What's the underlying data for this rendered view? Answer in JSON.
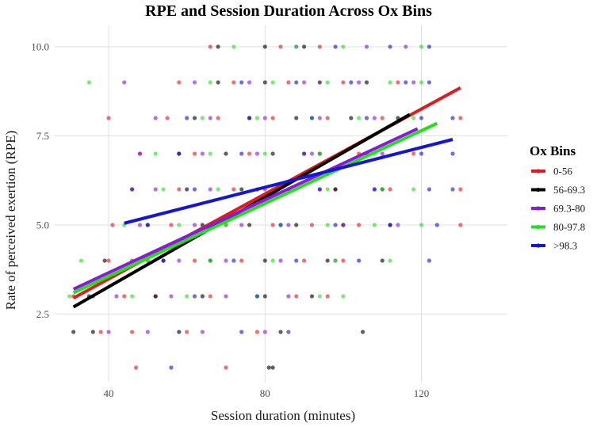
{
  "chart_data": {
    "type": "scatter",
    "title": "RPE and Session Duration Across Ox Bins",
    "xlabel": "Session duration (minutes)",
    "ylabel": "Rate of perceived exertion (RPE)",
    "xlim": [
      26,
      142
    ],
    "ylim": [
      0.6,
      10.6
    ],
    "x_ticks": [
      40,
      80,
      120
    ],
    "y_ticks": [
      2.5,
      5.0,
      7.5,
      10.0
    ],
    "x_tick_labels": [
      "40",
      "80",
      "120"
    ],
    "y_tick_labels": [
      "2.5",
      "5.0",
      "7.5",
      "10.0"
    ],
    "grid": true,
    "legend": {
      "title": "Ox Bins",
      "position": "right",
      "entries": [
        "0-56",
        "56-69.3",
        "69.3-80",
        "80-97.8",
        ">98.3"
      ]
    },
    "colors": {
      "0-56": "#e31a1c",
      "56-69.3": "#000000",
      "69.3-80": "#8a1ad6",
      "80-97.8": "#22e01e",
      ">98.3": "#1515d8"
    },
    "trend_lines": [
      {
        "name": "0-56",
        "x": [
          31,
          130
        ],
        "y": [
          2.95,
          8.85
        ]
      },
      {
        "name": "56-69.3",
        "x": [
          31,
          117
        ],
        "y": [
          2.7,
          8.1
        ]
      },
      {
        "name": "69.3-80",
        "x": [
          31,
          119
        ],
        "y": [
          3.2,
          7.7
        ]
      },
      {
        "name": "80-97.8",
        "x": [
          31,
          124
        ],
        "y": [
          3.1,
          7.85
        ]
      },
      {
        "name": ">98.3",
        "x": [
          44,
          128
        ],
        "y": [
          5.05,
          7.4
        ]
      }
    ],
    "series": [
      {
        "name": "0-56",
        "points": [
          [
            47,
            1
          ],
          [
            70,
            1
          ],
          [
            38,
            2
          ],
          [
            46,
            2
          ],
          [
            60,
            2
          ],
          [
            78,
            2
          ],
          [
            31,
            3
          ],
          [
            44,
            3
          ],
          [
            52,
            3
          ],
          [
            66,
            3
          ],
          [
            88,
            3
          ],
          [
            96,
            3
          ],
          [
            40,
            4
          ],
          [
            50,
            4
          ],
          [
            62,
            4
          ],
          [
            74,
            4
          ],
          [
            90,
            4
          ],
          [
            100,
            4
          ],
          [
            41,
            5
          ],
          [
            56,
            5
          ],
          [
            70,
            5
          ],
          [
            82,
            5
          ],
          [
            92,
            5
          ],
          [
            104,
            5
          ],
          [
            130,
            5
          ],
          [
            46,
            6
          ],
          [
            58,
            6
          ],
          [
            72,
            6
          ],
          [
            86,
            6
          ],
          [
            98,
            6
          ],
          [
            112,
            6
          ],
          [
            130,
            6
          ],
          [
            48,
            7
          ],
          [
            62,
            7
          ],
          [
            76,
            7
          ],
          [
            90,
            7
          ],
          [
            104,
            7
          ],
          [
            118,
            7
          ],
          [
            40,
            8
          ],
          [
            55,
            8
          ],
          [
            68,
            8
          ],
          [
            82,
            8
          ],
          [
            96,
            8
          ],
          [
            110,
            8
          ],
          [
            130,
            8
          ],
          [
            58,
            9
          ],
          [
            72,
            9
          ],
          [
            86,
            9
          ],
          [
            100,
            9
          ],
          [
            114,
            9
          ],
          [
            66,
            10
          ],
          [
            84,
            10
          ],
          [
            94,
            10
          ]
        ]
      },
      {
        "name": "56-69.3",
        "points": [
          [
            82,
            1
          ],
          [
            81,
            1
          ],
          [
            31,
            2
          ],
          [
            36,
            2
          ],
          [
            58,
            2
          ],
          [
            84,
            2
          ],
          [
            105,
            2
          ],
          [
            35,
            3
          ],
          [
            52,
            3
          ],
          [
            64,
            3
          ],
          [
            80,
            3
          ],
          [
            92,
            3
          ],
          [
            39,
            4
          ],
          [
            54,
            4
          ],
          [
            66,
            4
          ],
          [
            80,
            4
          ],
          [
            96,
            4
          ],
          [
            110,
            4
          ],
          [
            50,
            5
          ],
          [
            64,
            5
          ],
          [
            76,
            5
          ],
          [
            88,
            5
          ],
          [
            100,
            5
          ],
          [
            112,
            5
          ],
          [
            60,
            6
          ],
          [
            74,
            6
          ],
          [
            86,
            6
          ],
          [
            98,
            6
          ],
          [
            110,
            6
          ],
          [
            58,
            7
          ],
          [
            70,
            7
          ],
          [
            82,
            7
          ],
          [
            94,
            7
          ],
          [
            106,
            7
          ],
          [
            62,
            8
          ],
          [
            76,
            8
          ],
          [
            88,
            8
          ],
          [
            102,
            8
          ],
          [
            114,
            8
          ],
          [
            68,
            9
          ],
          [
            80,
            9
          ],
          [
            94,
            9
          ],
          [
            106,
            9
          ],
          [
            68,
            10
          ],
          [
            80,
            10
          ],
          [
            90,
            10
          ]
        ]
      },
      {
        "name": "69.3-80",
        "points": [
          [
            40,
            2
          ],
          [
            50,
            2
          ],
          [
            64,
            2
          ],
          [
            80,
            2
          ],
          [
            42,
            3
          ],
          [
            56,
            3
          ],
          [
            70,
            3
          ],
          [
            86,
            3
          ],
          [
            46,
            4
          ],
          [
            58,
            4
          ],
          [
            70,
            4
          ],
          [
            84,
            4
          ],
          [
            98,
            4
          ],
          [
            48,
            5
          ],
          [
            62,
            5
          ],
          [
            74,
            5
          ],
          [
            86,
            5
          ],
          [
            100,
            5
          ],
          [
            114,
            5
          ],
          [
            52,
            6
          ],
          [
            66,
            6
          ],
          [
            80,
            6
          ],
          [
            94,
            6
          ],
          [
            108,
            6
          ],
          [
            48,
            7
          ],
          [
            64,
            7
          ],
          [
            78,
            7
          ],
          [
            92,
            7
          ],
          [
            110,
            7
          ],
          [
            52,
            8
          ],
          [
            66,
            8
          ],
          [
            80,
            8
          ],
          [
            94,
            8
          ],
          [
            108,
            8
          ],
          [
            44,
            9
          ],
          [
            62,
            9
          ],
          [
            76,
            9
          ],
          [
            90,
            9
          ],
          [
            104,
            9
          ],
          [
            118,
            9
          ],
          [
            88,
            10
          ],
          [
            106,
            10
          ],
          [
            116,
            10
          ]
        ]
      },
      {
        "name": "80-97.8",
        "points": [
          [
            30,
            3
          ],
          [
            46,
            3
          ],
          [
            60,
            3
          ],
          [
            78,
            3
          ],
          [
            94,
            3
          ],
          [
            100,
            3
          ],
          [
            33,
            4
          ],
          [
            50,
            4
          ],
          [
            66,
            4
          ],
          [
            82,
            4
          ],
          [
            98,
            4
          ],
          [
            112,
            4
          ],
          [
            44,
            5
          ],
          [
            58,
            5
          ],
          [
            70,
            5
          ],
          [
            84,
            5
          ],
          [
            96,
            5
          ],
          [
            108,
            5
          ],
          [
            120,
            5
          ],
          [
            54,
            6
          ],
          [
            68,
            6
          ],
          [
            82,
            6
          ],
          [
            96,
            6
          ],
          [
            110,
            6
          ],
          [
            118,
            6
          ],
          [
            52,
            7
          ],
          [
            66,
            7
          ],
          [
            80,
            7
          ],
          [
            94,
            7
          ],
          [
            108,
            7
          ],
          [
            64,
            8
          ],
          [
            78,
            8
          ],
          [
            92,
            8
          ],
          [
            104,
            8
          ],
          [
            118,
            8
          ],
          [
            35,
            9
          ],
          [
            66,
            9
          ],
          [
            82,
            9
          ],
          [
            96,
            9
          ],
          [
            112,
            9
          ],
          [
            120,
            9
          ],
          [
            72,
            10
          ],
          [
            88,
            10
          ],
          [
            100,
            10
          ],
          [
            120,
            10
          ]
        ]
      },
      {
        "name": ">98.3",
        "points": [
          [
            56,
            1
          ],
          [
            74,
            2
          ],
          [
            86,
            2
          ],
          [
            36,
            3
          ],
          [
            62,
            3
          ],
          [
            78,
            3
          ],
          [
            54,
            4
          ],
          [
            72,
            4
          ],
          [
            88,
            4
          ],
          [
            104,
            4
          ],
          [
            122,
            4
          ],
          [
            50,
            5
          ],
          [
            68,
            5
          ],
          [
            84,
            5
          ],
          [
            98,
            5
          ],
          [
            112,
            5
          ],
          [
            124,
            5
          ],
          [
            46,
            6
          ],
          [
            62,
            6
          ],
          [
            78,
            6
          ],
          [
            94,
            6
          ],
          [
            108,
            6
          ],
          [
            122,
            6
          ],
          [
            128,
            6
          ],
          [
            58,
            7
          ],
          [
            74,
            7
          ],
          [
            90,
            7
          ],
          [
            106,
            7
          ],
          [
            120,
            7
          ],
          [
            128,
            7
          ],
          [
            60,
            8
          ],
          [
            76,
            8
          ],
          [
            92,
            8
          ],
          [
            106,
            8
          ],
          [
            120,
            8
          ],
          [
            128,
            8
          ],
          [
            74,
            9
          ],
          [
            88,
            9
          ],
          [
            102,
            9
          ],
          [
            116,
            9
          ],
          [
            122,
            9
          ],
          [
            98,
            10
          ],
          [
            112,
            10
          ],
          [
            122,
            10
          ]
        ]
      }
    ]
  }
}
